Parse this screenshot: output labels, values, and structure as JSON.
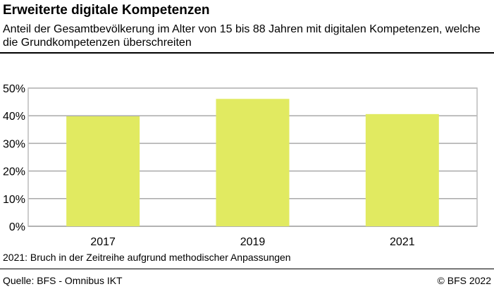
{
  "title": "Erweiterte digitale Kompetenzen",
  "subtitle": "Anteil der Gesamtbevölkerung im Alter von 15 bis 88 Jahren mit digitalen Kompetenzen, welche die Grundkompetenzen überschreiten",
  "note": "2021: Bruch in der Zeitreihe aufgrund methodischer Anpassungen",
  "source": "Quelle: BFS - Omnibus IKT",
  "copyright": "© BFS 2022",
  "chart_data": {
    "type": "bar",
    "categories": [
      "2017",
      "2019",
      "2021"
    ],
    "values": [
      39.8,
      46.1,
      40.6
    ],
    "ylim": [
      0,
      50
    ],
    "yticks": [
      "0%",
      "10%",
      "20%",
      "30%",
      "40%",
      "50%"
    ],
    "grid": true,
    "bar_color": "#e1ea61"
  }
}
